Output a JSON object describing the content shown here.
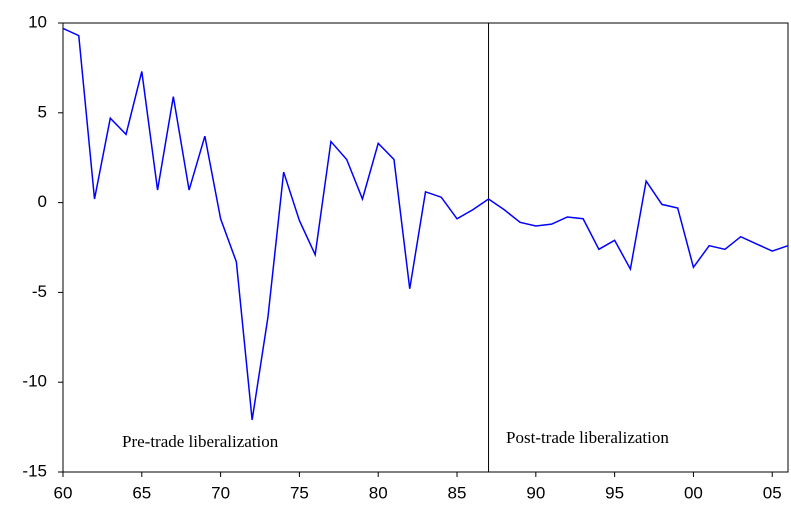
{
  "chart_data": {
    "type": "line",
    "x": [
      1960,
      1961,
      1962,
      1963,
      1964,
      1965,
      1966,
      1967,
      1968,
      1969,
      1970,
      1971,
      1972,
      1973,
      1974,
      1975,
      1976,
      1977,
      1978,
      1979,
      1980,
      1981,
      1982,
      1983,
      1984,
      1985,
      1986,
      1987,
      1988,
      1989,
      1990,
      1991,
      1992,
      1993,
      1994,
      1995,
      1996,
      1997,
      1998,
      1999,
      2000,
      2001,
      2002,
      2003,
      2004,
      2005,
      2006
    ],
    "values": [
      9.7,
      9.3,
      0.2,
      4.7,
      3.8,
      7.3,
      0.7,
      5.9,
      0.7,
      3.7,
      -0.9,
      -3.3,
      -12.1,
      -6.4,
      1.7,
      -1.0,
      -2.9,
      3.4,
      2.4,
      0.2,
      3.3,
      2.4,
      -4.8,
      0.6,
      0.3,
      -0.9,
      -0.4,
      0.2,
      -0.4,
      -1.1,
      -1.3,
      -1.2,
      -0.8,
      -0.9,
      -2.6,
      -2.1,
      -3.7,
      1.2,
      -0.1,
      -0.3,
      -3.6,
      -2.4,
      -2.6,
      -1.9,
      -2.3,
      -2.7,
      -2.4
    ],
    "color": "#0000ff",
    "xlim": [
      1960,
      2006
    ],
    "xticks": [
      {
        "value": 1960,
        "label": "60"
      },
      {
        "value": 1965,
        "label": "65"
      },
      {
        "value": 1970,
        "label": "70"
      },
      {
        "value": 1975,
        "label": "75"
      },
      {
        "value": 1980,
        "label": "80"
      },
      {
        "value": 1985,
        "label": "85"
      },
      {
        "value": 1990,
        "label": "90"
      },
      {
        "value": 1995,
        "label": "95"
      },
      {
        "value": 2000,
        "label": "00"
      },
      {
        "value": 2005,
        "label": "05"
      }
    ],
    "ylim": [
      -15,
      10
    ],
    "yticks": [
      10,
      5,
      0,
      -5,
      -10,
      -15
    ],
    "break_x": 1987,
    "annotations": [
      "Pre-trade liberalization",
      "Post-trade liberalization"
    ]
  }
}
